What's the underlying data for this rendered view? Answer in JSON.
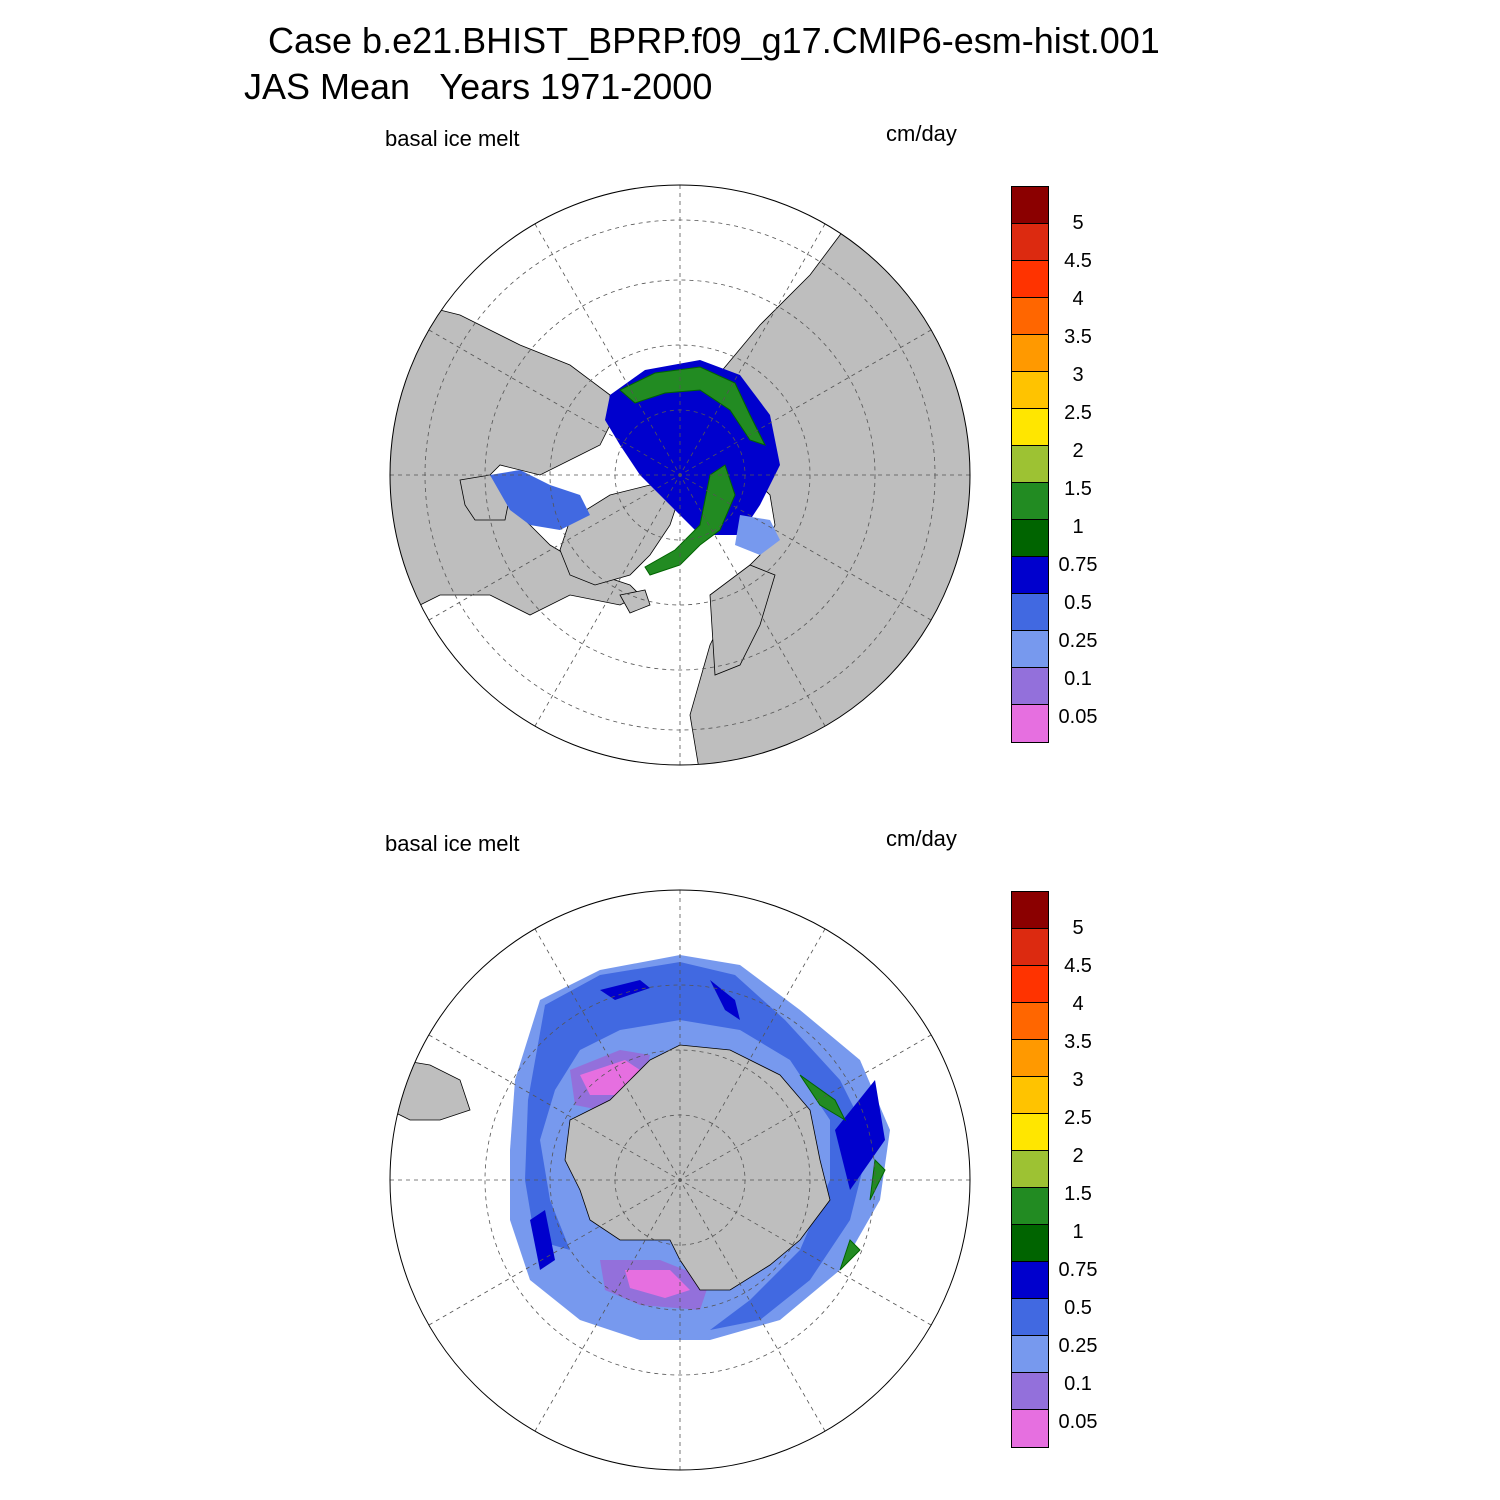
{
  "header": {
    "title_line1": "Case b.e21.BHIST_BPRP.f09_g17.CMIP6-esm-hist.001",
    "title_line2": "JAS Mean   Years 1971-2000"
  },
  "panels": [
    {
      "left_label": "basal ice melt",
      "right_label": "cm/day",
      "hemisphere": "north"
    },
    {
      "left_label": "basal ice melt",
      "right_label": "cm/day",
      "hemisphere": "south"
    }
  ],
  "colorbar": {
    "levels": [
      "5",
      "4.5",
      "4",
      "3.5",
      "3",
      "2.5",
      "2",
      "1.5",
      "1",
      "0.75",
      "0.5",
      "0.25",
      "0.1",
      "0.05"
    ],
    "colors_top_to_bottom": [
      "#8b0000",
      "#dc2a10",
      "#ff3300",
      "#ff6600",
      "#ff9900",
      "#ffc300",
      "#ffe600",
      "#9dc233",
      "#228b22",
      "#006400",
      "#0000cd",
      "#4169e1",
      "#7799ee",
      "#9370db",
      "#e66fe0"
    ]
  },
  "map_style": {
    "land_color": "#bebebe",
    "ocean_color": "#ffffff",
    "grid_style": "dashed"
  }
}
